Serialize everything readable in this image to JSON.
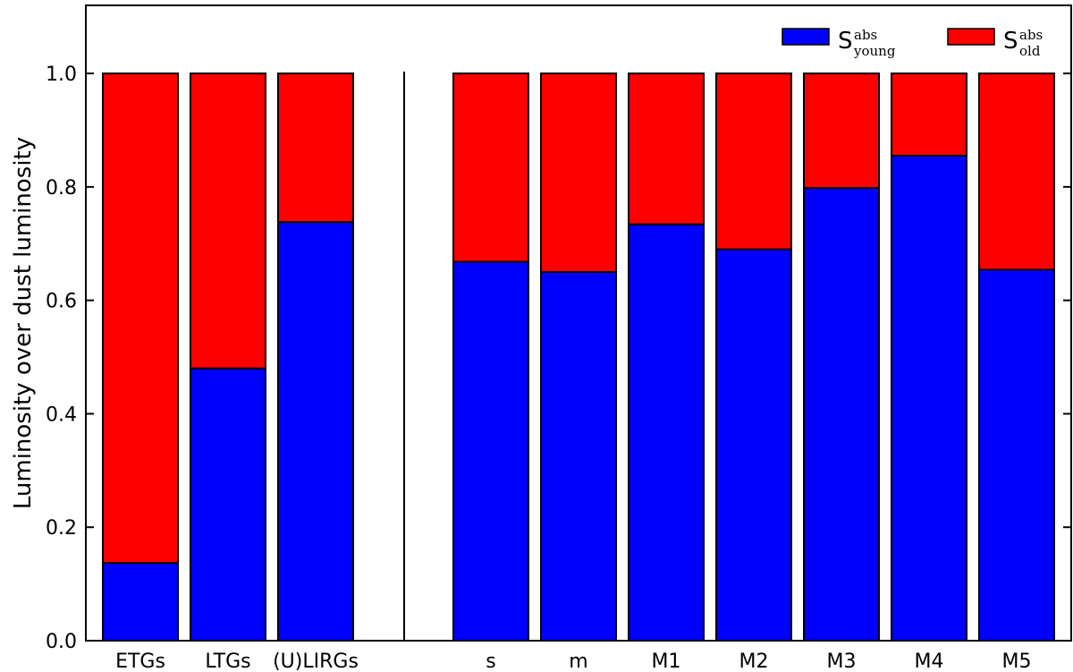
{
  "chart_data": {
    "type": "bar",
    "stacked": true,
    "title": "",
    "xlabel": "",
    "ylabel": "Luminosity over dust luminosity",
    "ylim": [
      0.0,
      1.12
    ],
    "yticks": [
      0.0,
      0.2,
      0.4,
      0.6,
      0.8,
      1.0
    ],
    "ytick_labels": [
      "0.0",
      "0.2",
      "0.4",
      "0.6",
      "0.8",
      "1.0"
    ],
    "grid": false,
    "legend_position": "top-right",
    "groups": [
      {
        "categories": [
          "ETGs",
          "LTGs",
          "(U)LIRGs"
        ]
      },
      {
        "categories": [
          "s",
          "m",
          "M1",
          "M2",
          "M3",
          "M4",
          "M5"
        ]
      }
    ],
    "categories": [
      "ETGs",
      "LTGs",
      "(U)LIRGs",
      "s",
      "m",
      "M1",
      "M2",
      "M3",
      "M4",
      "M5"
    ],
    "series": [
      {
        "name": "young",
        "legend_main": "S",
        "legend_sup": "abs",
        "legend_sub": "young",
        "color": "#0000ff",
        "values": [
          0.137,
          0.48,
          0.738,
          0.668,
          0.65,
          0.734,
          0.69,
          0.798,
          0.855,
          0.654
        ]
      },
      {
        "name": "old",
        "legend_main": "S",
        "legend_sup": "abs",
        "legend_sub": "old",
        "color": "#ff0000",
        "values": [
          0.863,
          0.52,
          0.262,
          0.332,
          0.35,
          0.266,
          0.31,
          0.202,
          0.145,
          0.346
        ]
      }
    ]
  }
}
